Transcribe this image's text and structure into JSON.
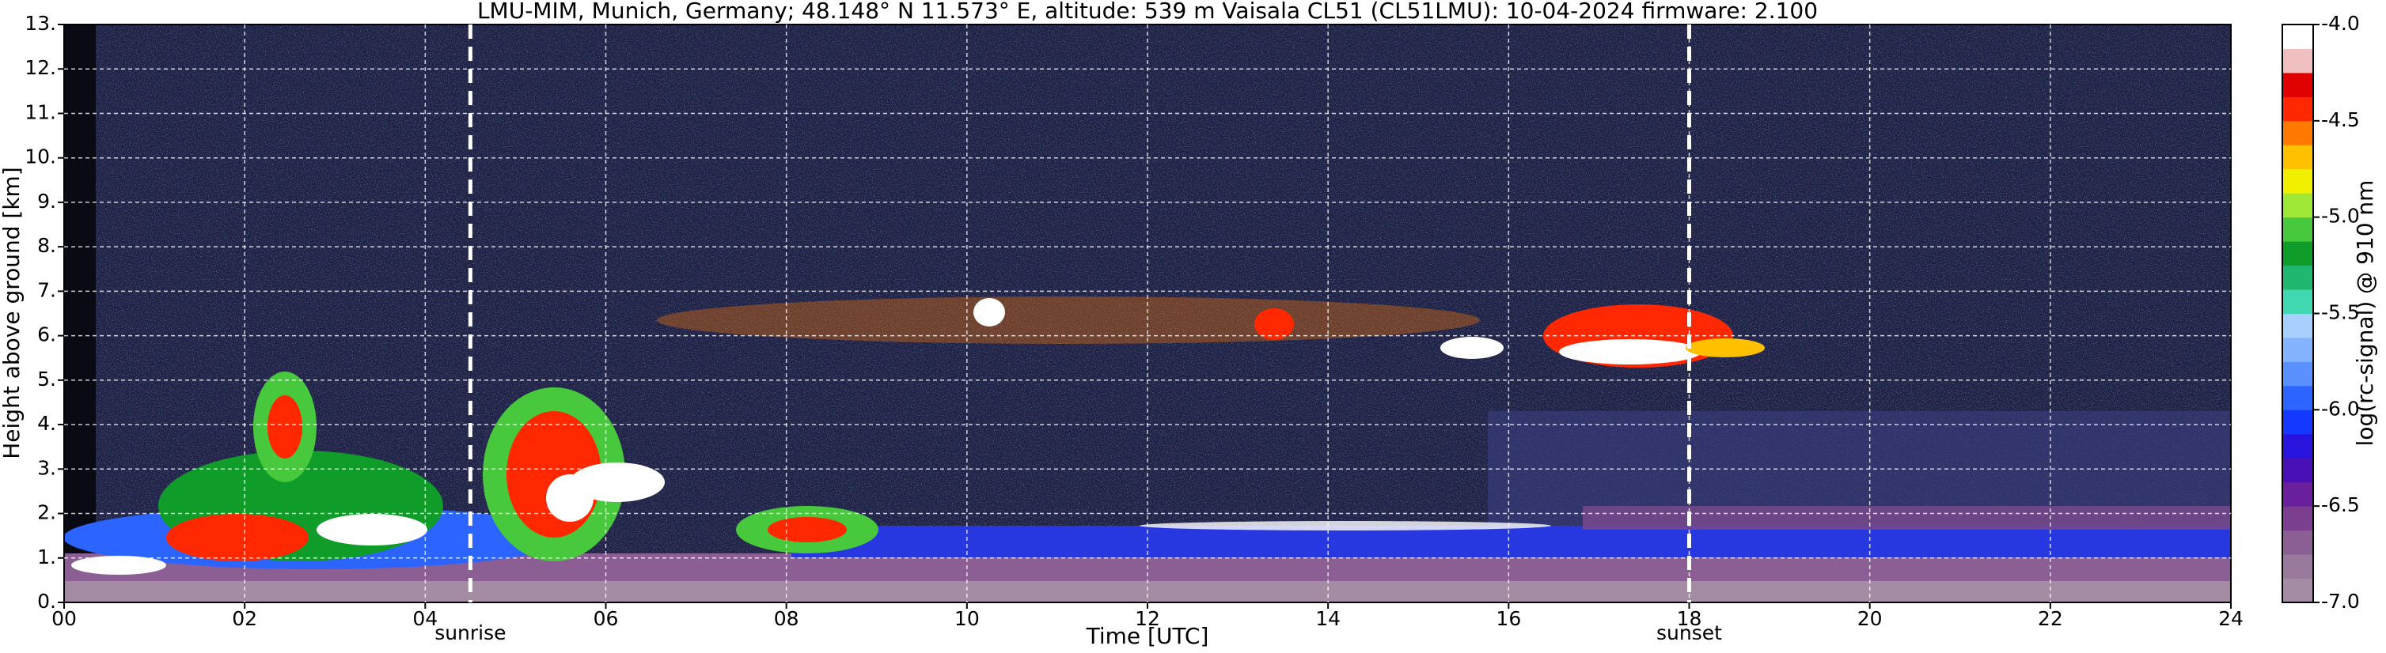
{
  "chart_data": {
    "type": "heatmap",
    "title": "LMU-MIM, Munich, Germany; 48.148° N 11.573° E, altitude: 539 m    Vaisala CL51 (CL51LMU): 10-04-2024    firmware: 2.100",
    "x_label": "Time [UTC]",
    "y_label": "Height above ground [km]",
    "xlim": [
      0,
      24
    ],
    "xticks": [
      {
        "value": 0,
        "label": "00"
      },
      {
        "value": 2,
        "label": "02"
      },
      {
        "value": 4,
        "label": "04"
      },
      {
        "value": 6,
        "label": "06"
      },
      {
        "value": 8,
        "label": "08"
      },
      10,
      12,
      14,
      16,
      18,
      20,
      22,
      24
    ],
    "ylim": [
      0,
      13
    ],
    "yticks": [
      {
        "value": 0,
        "label": "0."
      },
      {
        "value": 1,
        "label": "1."
      },
      {
        "value": 2,
        "label": "2."
      },
      {
        "value": 3,
        "label": "3."
      },
      {
        "value": 4,
        "label": "4."
      },
      {
        "value": 5,
        "label": "5."
      },
      {
        "value": 6,
        "label": "6."
      },
      {
        "value": 7,
        "label": "7."
      },
      {
        "value": 8,
        "label": "8."
      },
      {
        "value": 9,
        "label": "9."
      },
      {
        "value": 10,
        "label": "10."
      },
      {
        "value": 11,
        "label": "11."
      },
      {
        "value": 12,
        "label": "12."
      },
      {
        "value": 13,
        "label": "13."
      }
    ],
    "grid": true,
    "annotations": [
      {
        "text": "sunrise",
        "x": 4.5
      },
      {
        "text": "sunset",
        "x": 18.0
      }
    ],
    "colorbar": {
      "label": "log(rc-signal) @ 910 nm",
      "clim": [
        -7.0,
        -4.0
      ],
      "ticks": [
        {
          "value": -7.0,
          "label": "-7.0"
        },
        {
          "value": -6.5,
          "label": "-6.5"
        },
        {
          "value": -6.0,
          "label": "-6.0"
        },
        {
          "value": -5.5,
          "label": "-5.5"
        },
        {
          "value": -5.0,
          "label": "-5.0"
        },
        {
          "value": -4.5,
          "label": "-4.5"
        },
        {
          "value": -4.0,
          "label": "-4.0"
        }
      ],
      "colors": [
        "#a48ca4",
        "#9a7a9c",
        "#8c5f94",
        "#7c3f90",
        "#6a1f9c",
        "#4a10b8",
        "#2814dc",
        "#1438ff",
        "#2c64ff",
        "#5a90ff",
        "#84b4ff",
        "#a8d0ff",
        "#40d8b0",
        "#20b870",
        "#109c28",
        "#48c83c",
        "#a0e838",
        "#f0f000",
        "#ffc000",
        "#ff7800",
        "#ff2800",
        "#e00000",
        "#f0c0c0",
        "#ffffff"
      ]
    }
  }
}
